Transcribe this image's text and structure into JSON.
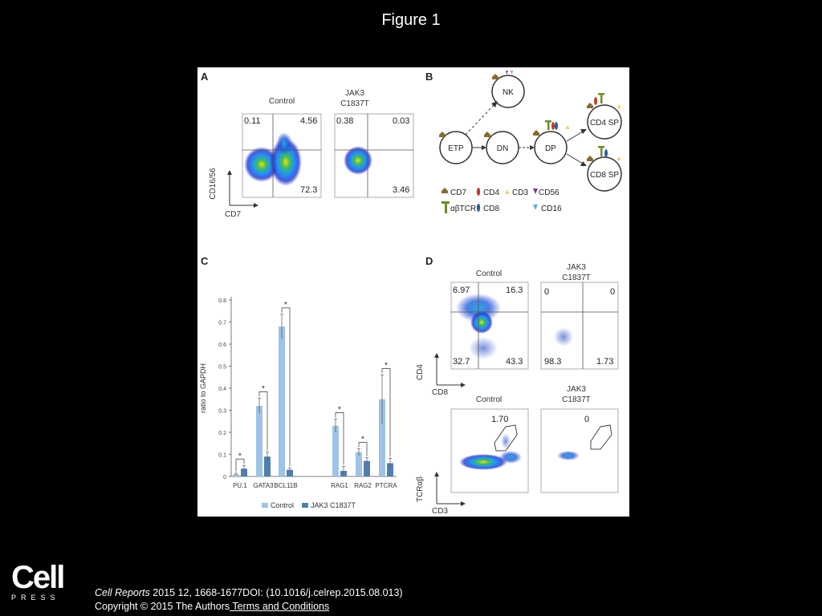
{
  "slide": {
    "title": "Figure 1"
  },
  "panels": {
    "A": {
      "letter": "A",
      "control_label": "Control",
      "jak3_label_1": "JAK3",
      "jak3_label_2": "C1837T",
      "y_axis": "CD16/56",
      "x_axis": "CD7",
      "control_quadrants": {
        "ul": "0.11",
        "ur": "4.56",
        "lr": "72.3"
      },
      "jak3_quadrants": {
        "ul": "0.38",
        "ur": "0.03",
        "lr": "3.46"
      }
    },
    "B": {
      "letter": "B",
      "nodes": {
        "nk": "NK",
        "etp": "ETP",
        "dn": "DN",
        "dp": "DP",
        "cd4sp": "CD4 SP",
        "cd8sp": "CD8 SP"
      },
      "legend": {
        "cd7": "CD7",
        "cd4": "CD4",
        "cd3": "CD3",
        "cd56": "CD56",
        "abtcr": "αβTCR",
        "cd8": "CD8",
        "cd16": "CD16"
      },
      "colors": {
        "cd7": "#8a6a2a",
        "cd4": "#c0392b",
        "cd3": "#f2d27a",
        "cd56": "#7d3c98",
        "abtcr": "#6b8e23",
        "cd8": "#2e5d9f",
        "cd16": "#5dade2"
      }
    },
    "C": {
      "letter": "C",
      "chart_data": {
        "type": "bar",
        "ylabel": "ratio to GAPDH",
        "ylim": [
          0,
          0.8
        ],
        "yticks": [
          "0",
          "0.1",
          "0.2",
          "0.3",
          "0.4",
          "0.5",
          "0.6",
          "0.7",
          "0.8"
        ],
        "categories": [
          "PU.1",
          "GATA3",
          "BCL11B",
          "RAG1",
          "RAG2",
          "PTCRA"
        ],
        "series": [
          {
            "name": "Control",
            "color": "#9dc3e6",
            "values": [
              0.01,
              0.32,
              0.68,
              0.23,
              0.11,
              0.35
            ],
            "errors": [
              0.005,
              0.035,
              0.055,
              0.03,
              0.015,
              0.11
            ]
          },
          {
            "name": "JAK3 C1837T",
            "color": "#4f7fb0",
            "values": [
              0.035,
              0.09,
              0.03,
              0.025,
              0.07,
              0.06
            ],
            "errors": [
              0.015,
              0.02,
              0.008,
              0.02,
              0.015,
              0.022
            ]
          }
        ],
        "significance": [
          "*",
          "*",
          "*",
          "*",
          "*",
          "*"
        ]
      }
    },
    "D": {
      "letter": "D",
      "control_label": "Control",
      "jak3_label_1": "JAK3",
      "jak3_label_2": "C1837T",
      "top_y_axis": "CD4",
      "top_x_axis": "CD8",
      "control_quadrants": {
        "ul": "6.97",
        "ur": "16.3",
        "ll": "32.7",
        "lr": "43.3"
      },
      "jak3_quadrants": {
        "ul": "0",
        "ur": "0",
        "ll": "98.3",
        "lr": "1.73"
      },
      "bottom_control_label": "Control",
      "bottom_jak3_label_1": "JAK3",
      "bottom_jak3_label_2": "C1837T",
      "bottom_y_axis": "TCRαβ",
      "bottom_x_axis": "CD3",
      "control_gate": "1.70",
      "jak3_gate": "0"
    }
  },
  "footer": {
    "logo_word": "Cell",
    "logo_sub": "PRESS",
    "journal": "Cell Reports",
    "citation_rest": " 2015 12, 1668-1677DOI: (10.1016/j.celrep.2015.08.013)",
    "copyright": "Copyright © 2015 The Authors",
    "terms_link": " Terms and Conditions"
  }
}
